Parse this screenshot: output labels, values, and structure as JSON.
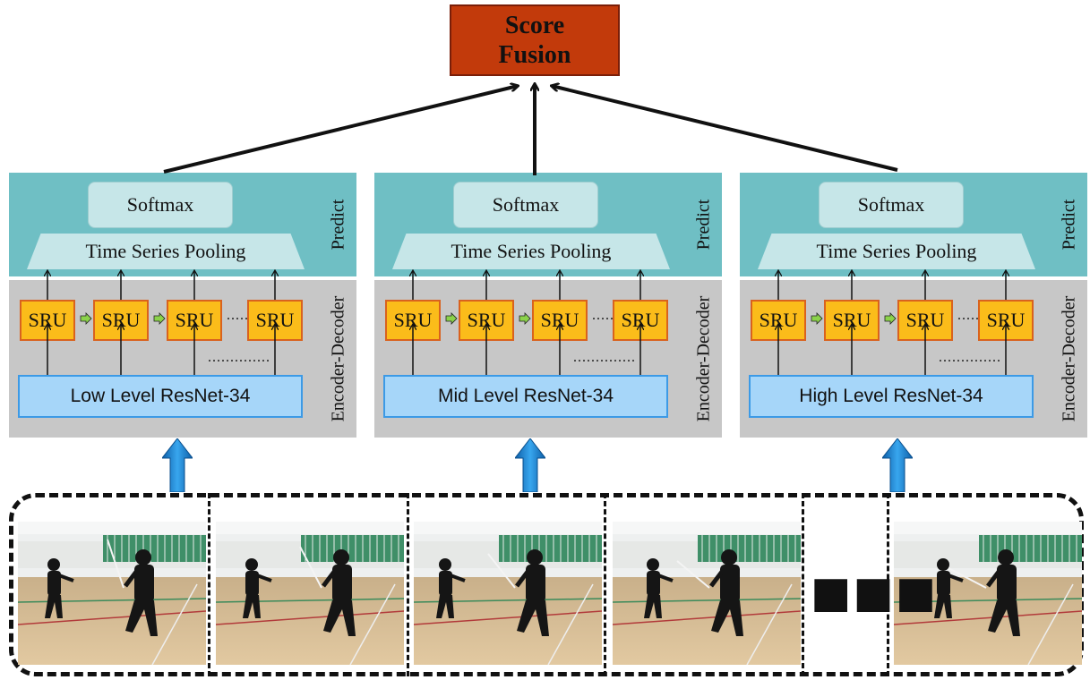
{
  "fusion": {
    "label": "Score\nFusion"
  },
  "panels": [
    {
      "predict_label": "Predict",
      "encoder_label": "Encoder-Decoder",
      "softmax": "Softmax",
      "pooling": "Time Series Pooling",
      "sru": [
        "SRU",
        "SRU",
        "SRU",
        "SRU"
      ],
      "resnet": "Low Level ResNet-34",
      "step_ellipsis": ".....",
      "feature_ellipsis": ".............."
    },
    {
      "predict_label": "Predict",
      "encoder_label": "Encoder-Decoder",
      "softmax": "Softmax",
      "pooling": "Time Series Pooling",
      "sru": [
        "SRU",
        "SRU",
        "SRU",
        "SRU"
      ],
      "resnet": "Mid Level ResNet-34",
      "step_ellipsis": ".....",
      "feature_ellipsis": ".............."
    },
    {
      "predict_label": "Predict",
      "encoder_label": "Encoder-Decoder",
      "softmax": "Softmax",
      "pooling": "Time Series Pooling",
      "sru": [
        "SRU",
        "SRU",
        "SRU",
        "SRU"
      ],
      "resnet": "High Level ResNet-34",
      "step_ellipsis": ".....",
      "feature_ellipsis": ".............."
    }
  ],
  "video": {
    "frame_count": 5,
    "gap_marker": "■■■"
  },
  "colors": {
    "fusion": "#c23a0b",
    "predict": "#6fbfc4",
    "encoder": "#c7c7c7",
    "sru": "#fbbc1a",
    "resnet": "#a6d6f9",
    "feed_arrow": "#1e88d6"
  }
}
